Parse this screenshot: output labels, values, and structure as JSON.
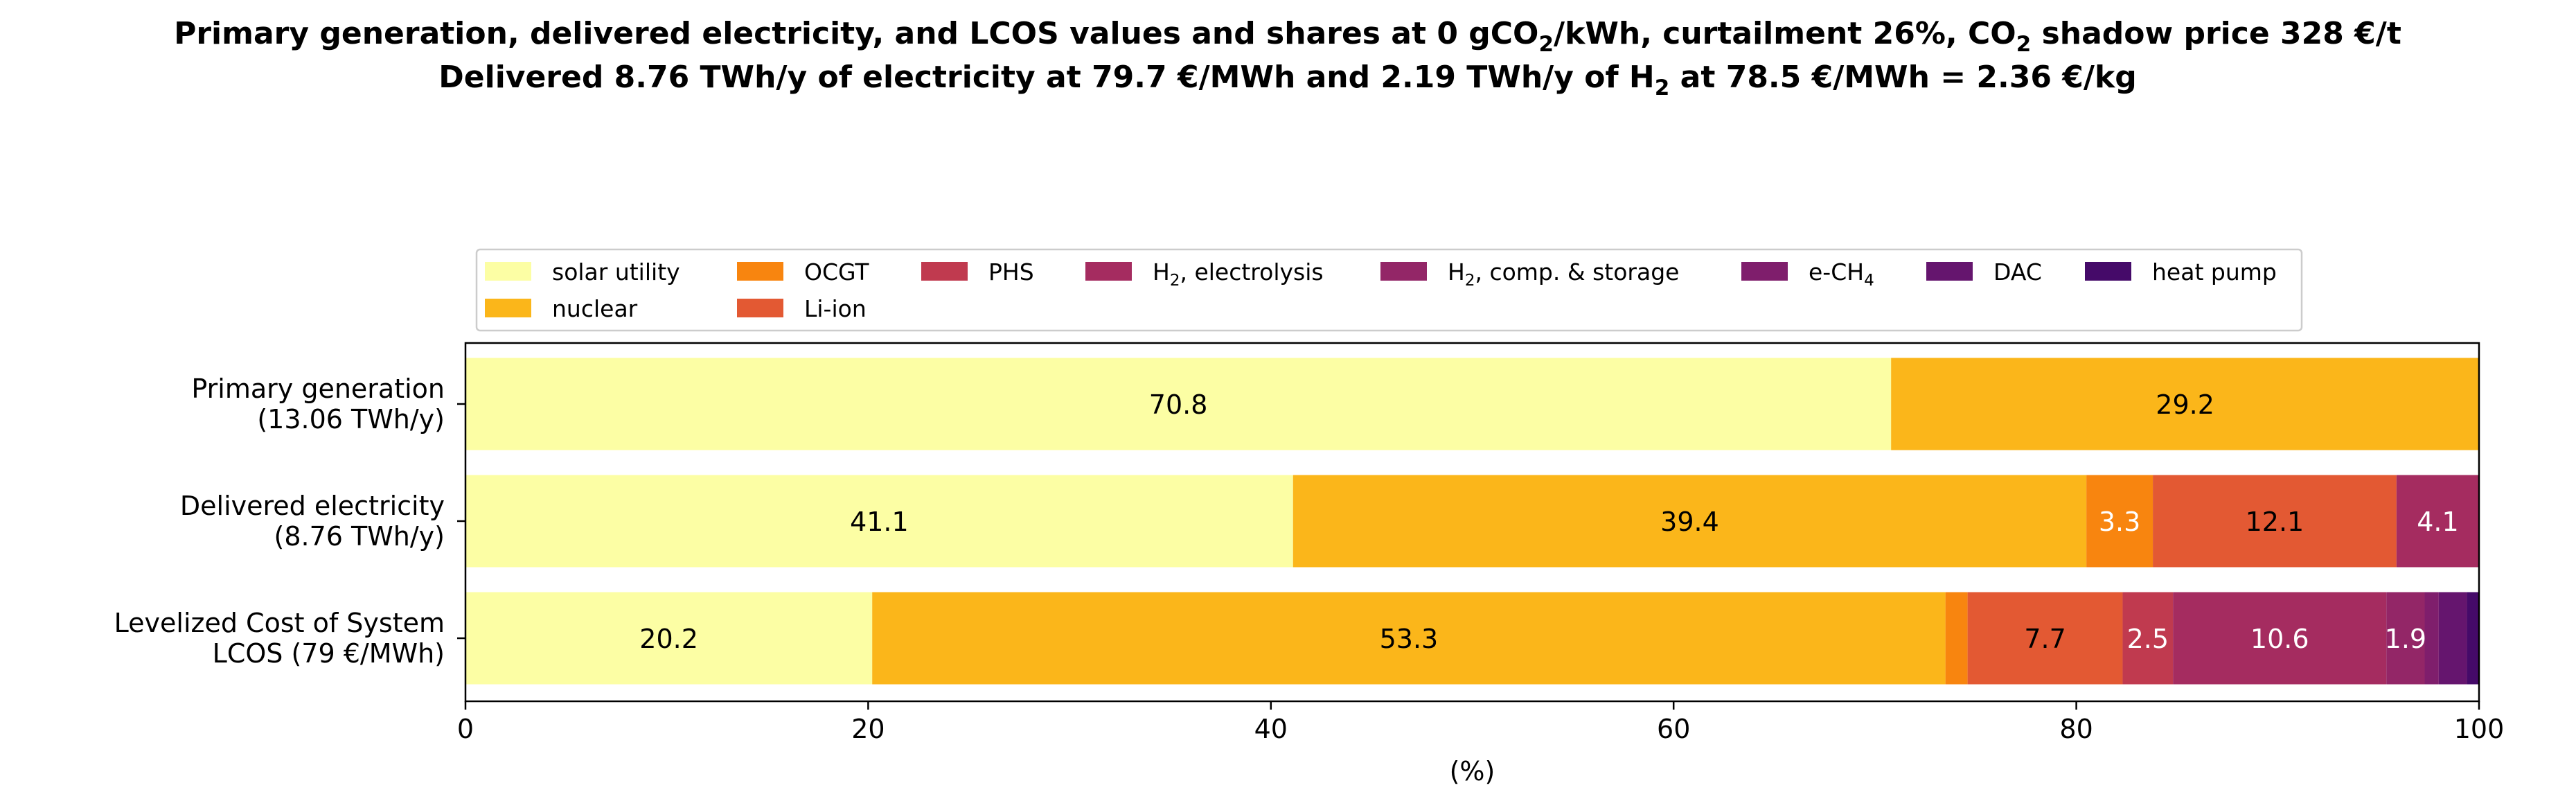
{
  "chart_data": {
    "type": "bar",
    "orientation": "horizontal",
    "stacked": true,
    "title_line1": {
      "parts": [
        {
          "t": "Primary generation, delivered electricity, and LCOS values and shares at 0 gCO"
        },
        {
          "t": "2",
          "sub": true
        },
        {
          "t": "/kWh, curtailment 26%, CO"
        },
        {
          "t": "2",
          "sub": true
        },
        {
          "t": " shadow price 328 €/t"
        }
      ]
    },
    "title_line2": {
      "parts": [
        {
          "t": "Delivered 8.76 TWh/y of electricity at 79.7 €/MWh and 2.19 TWh/y of H"
        },
        {
          "t": "2",
          "sub": true
        },
        {
          "t": " at 78.5 €/MWh = 2.36 €/kg"
        }
      ]
    },
    "xlabel": "(%)",
    "xlim": [
      0,
      100
    ],
    "xticks": [
      0,
      20,
      40,
      60,
      80,
      100
    ],
    "legend_position": "top-center",
    "categories": [
      [
        "Primary generation ",
        "(13.06 TWh/y)"
      ],
      [
        "Delivered electricity ",
        "(8.76 TWh/y)"
      ],
      [
        "Levelized Cost of System",
        "LCOS  (79 €/MWh)"
      ]
    ],
    "series": [
      {
        "name": [
          {
            "t": "solar utility"
          }
        ],
        "color": "#fcfea4",
        "label_color": "#000000",
        "values": [
          70.8,
          41.1,
          20.2
        ]
      },
      {
        "name": [
          {
            "t": "nuclear"
          }
        ],
        "color": "#fbb61a",
        "label_color": "#000000",
        "values": [
          29.2,
          39.4,
          53.3
        ]
      },
      {
        "name": [
          {
            "t": "OCGT"
          }
        ],
        "color": "#f8850f",
        "label_color": "#ffffff",
        "values": [
          0,
          3.3,
          1.1
        ]
      },
      {
        "name": [
          {
            "t": "Li-ion"
          }
        ],
        "color": "#e35933",
        "label_color": "#000000",
        "values": [
          0,
          12.1,
          7.7
        ]
      },
      {
        "name": [
          {
            "t": "PHS"
          }
        ],
        "color": "#c03a4f",
        "label_color": "#ffffff",
        "values": [
          0,
          0,
          2.5
        ]
      },
      {
        "name": [
          {
            "t": "H"
          },
          {
            "t": "2",
            "sub": true
          },
          {
            "t": ", electrolysis"
          }
        ],
        "color": "#a52c60",
        "label_color": "#ffffff",
        "values": [
          0,
          4.1,
          10.6
        ]
      },
      {
        "name": [
          {
            "t": "H"
          },
          {
            "t": "2",
            "sub": true
          },
          {
            "t": ", comp. & storage"
          }
        ],
        "color": "#932667",
        "label_color": "#ffffff",
        "values": [
          0,
          0,
          1.9
        ]
      },
      {
        "name": [
          {
            "t": "e-CH"
          },
          {
            "t": "4",
            "sub": true
          }
        ],
        "color": "#7f1e6c",
        "label_color": "#ffffff",
        "values": [
          0,
          0,
          0.7
        ]
      },
      {
        "name": [
          {
            "t": "DAC"
          }
        ],
        "color": "#65156e",
        "label_color": "#ffffff",
        "values": [
          0,
          0,
          1.4
        ]
      },
      {
        "name": [
          {
            "t": "heat pump"
          }
        ],
        "color": "#450a69",
        "label_color": "#ffffff",
        "values": [
          0,
          0,
          0.6
        ]
      }
    ],
    "min_label_value": 1.5
  }
}
